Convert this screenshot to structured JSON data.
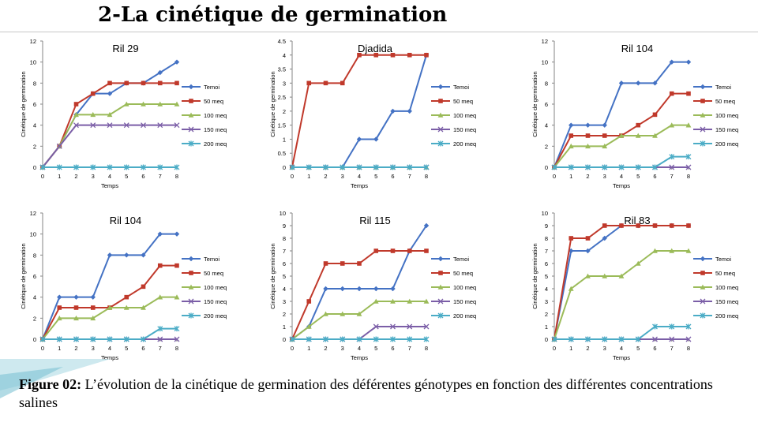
{
  "slide": {
    "title": "2-La cinétique de germination",
    "caption_label": "Figure 02:",
    "caption_text": " L’évolution de la cinétique de germination des déférentes génotypes en fonction des différentes concentrations salines"
  },
  "colors": {
    "Temoi": "#4472C4",
    "50 meq": "#C0392B",
    "100 meq": "#9BBB59",
    "150 meq": "#7B5EA7",
    "200 meq": "#4BACC6"
  },
  "chart_data": [
    {
      "type": "line",
      "title": "Ril 29",
      "xlabel": "Temps",
      "ylabel": "Cinétique de germination",
      "ylim": [
        0,
        12
      ],
      "yticks": [
        "0",
        "2",
        "4",
        "6",
        "8",
        "10",
        "12"
      ],
      "x": [
        0,
        1,
        2,
        3,
        4,
        5,
        6,
        7,
        8
      ],
      "xticks": [
        "0",
        "1",
        "2",
        "3",
        "4",
        "5",
        "6",
        "7",
        "8"
      ],
      "series": [
        {
          "name": "Temoi",
          "values": [
            0,
            2,
            5,
            7,
            7,
            8,
            8,
            9,
            10
          ]
        },
        {
          "name": "50 meq",
          "values": [
            0,
            2,
            6,
            7,
            8,
            8,
            8,
            8,
            8
          ]
        },
        {
          "name": "100 meq",
          "values": [
            0,
            2,
            5,
            5,
            5,
            6,
            6,
            6,
            6
          ]
        },
        {
          "name": "150 meq",
          "values": [
            0,
            2,
            4,
            4,
            4,
            4,
            4,
            4,
            4
          ]
        },
        {
          "name": "200 meq",
          "values": [
            0,
            0,
            0,
            0,
            0,
            0,
            0,
            0,
            0
          ]
        }
      ]
    },
    {
      "type": "line",
      "title": "Djadida",
      "xlabel": "Temps",
      "ylabel": "Cinétique de germination",
      "ylim": [
        0,
        4.5
      ],
      "yticks": [
        "0",
        "0.5",
        "1",
        "1.5",
        "2",
        "2.5",
        "3",
        "3.5",
        "4",
        "4.5"
      ],
      "x": [
        0,
        1,
        2,
        3,
        4,
        5,
        6,
        7,
        8
      ],
      "xticks": [
        "0",
        "1",
        "2",
        "3",
        "4",
        "5",
        "6",
        "7",
        "8"
      ],
      "series": [
        {
          "name": "Temoi",
          "values": [
            0,
            0,
            0,
            0,
            1,
            1,
            2,
            2,
            4
          ]
        },
        {
          "name": "50 meq",
          "values": [
            0,
            3,
            3,
            3,
            4,
            4,
            4,
            4,
            4
          ]
        },
        {
          "name": "100 meq",
          "values": [
            0,
            0,
            0,
            0,
            0,
            0,
            0,
            0,
            0
          ]
        },
        {
          "name": "150 meq",
          "values": [
            0,
            0,
            0,
            0,
            0,
            0,
            0,
            0,
            0
          ]
        },
        {
          "name": "200 meq",
          "values": [
            0,
            0,
            0,
            0,
            0,
            0,
            0,
            0,
            0
          ]
        }
      ]
    },
    {
      "type": "line",
      "title": "Ril 104",
      "xlabel": "Temps",
      "ylabel": "Cinétique de germination",
      "ylim": [
        0,
        12
      ],
      "yticks": [
        "0",
        "2",
        "4",
        "6",
        "8",
        "10",
        "12"
      ],
      "x": [
        0,
        1,
        2,
        3,
        4,
        5,
        6,
        7,
        8
      ],
      "xticks": [
        "0",
        "1",
        "2",
        "3",
        "4",
        "5",
        "6",
        "7",
        "8"
      ],
      "series": [
        {
          "name": "Temoi",
          "values": [
            0,
            4,
            4,
            4,
            8,
            8,
            8,
            10,
            10
          ]
        },
        {
          "name": "50 meq",
          "values": [
            0,
            3,
            3,
            3,
            3,
            4,
            5,
            7,
            7
          ]
        },
        {
          "name": "100 meq",
          "values": [
            0,
            2,
            2,
            2,
            3,
            3,
            3,
            4,
            4
          ]
        },
        {
          "name": "150 meq",
          "values": [
            0,
            0,
            0,
            0,
            0,
            0,
            0,
            0,
            0
          ]
        },
        {
          "name": "200 meq",
          "values": [
            0,
            0,
            0,
            0,
            0,
            0,
            0,
            1,
            1
          ]
        }
      ]
    },
    {
      "type": "line",
      "title": "Ril 104",
      "xlabel": "Temps",
      "ylabel": "Cinétique de germination",
      "ylim": [
        0,
        12
      ],
      "yticks": [
        "0",
        "2",
        "4",
        "6",
        "8",
        "10",
        "12"
      ],
      "x": [
        0,
        1,
        2,
        3,
        4,
        5,
        6,
        7,
        8
      ],
      "xticks": [
        "0",
        "1",
        "2",
        "3",
        "4",
        "5",
        "6",
        "7",
        "8"
      ],
      "series": [
        {
          "name": "Temoi",
          "values": [
            0,
            4,
            4,
            4,
            8,
            8,
            8,
            10,
            10
          ]
        },
        {
          "name": "50 meq",
          "values": [
            0,
            3,
            3,
            3,
            3,
            4,
            5,
            7,
            7
          ]
        },
        {
          "name": "100 meq",
          "values": [
            0,
            2,
            2,
            2,
            3,
            3,
            3,
            4,
            4
          ]
        },
        {
          "name": "150 meq",
          "values": [
            0,
            0,
            0,
            0,
            0,
            0,
            0,
            0,
            0
          ]
        },
        {
          "name": "200 meq",
          "values": [
            0,
            0,
            0,
            0,
            0,
            0,
            0,
            1,
            1
          ]
        }
      ]
    },
    {
      "type": "line",
      "title": "Ril 115",
      "xlabel": "Temps",
      "ylabel": "Cinétique de germination",
      "ylim": [
        0,
        10
      ],
      "yticks": [
        "0",
        "1",
        "2",
        "3",
        "4",
        "5",
        "6",
        "7",
        "8",
        "9",
        "10"
      ],
      "x": [
        0,
        1,
        2,
        3,
        4,
        5,
        6,
        7,
        8
      ],
      "xticks": [
        "0",
        "1",
        "2",
        "3",
        "4",
        "5",
        "6",
        "7",
        "8"
      ],
      "series": [
        {
          "name": "Temoi",
          "values": [
            0,
            1,
            4,
            4,
            4,
            4,
            4,
            7,
            9
          ]
        },
        {
          "name": "50 meq",
          "values": [
            0,
            3,
            6,
            6,
            6,
            7,
            7,
            7,
            7
          ]
        },
        {
          "name": "100 meq",
          "values": [
            0,
            1,
            2,
            2,
            2,
            3,
            3,
            3,
            3
          ]
        },
        {
          "name": "150 meq",
          "values": [
            0,
            0,
            0,
            0,
            0,
            1,
            1,
            1,
            1
          ]
        },
        {
          "name": "200 meq",
          "values": [
            0,
            0,
            0,
            0,
            0,
            0,
            0,
            0,
            0
          ]
        }
      ]
    },
    {
      "type": "line",
      "title": "Ril 83",
      "xlabel": "Temps",
      "ylabel": "Cinétique de germination",
      "ylim": [
        0,
        10
      ],
      "yticks": [
        "0",
        "1",
        "2",
        "3",
        "4",
        "5",
        "6",
        "7",
        "8",
        "9",
        "10"
      ],
      "x": [
        0,
        1,
        2,
        3,
        4,
        5,
        6,
        7,
        8
      ],
      "xticks": [
        "0",
        "1",
        "2",
        "3",
        "4",
        "5",
        "6",
        "7",
        "8"
      ],
      "series": [
        {
          "name": "Temoi",
          "values": [
            0,
            7,
            7,
            8,
            9,
            9,
            9,
            9,
            9
          ]
        },
        {
          "name": "50 meq",
          "values": [
            0,
            8,
            8,
            9,
            9,
            9,
            9,
            9,
            9
          ]
        },
        {
          "name": "100 meq",
          "values": [
            0,
            4,
            5,
            5,
            5,
            6,
            7,
            7,
            7
          ]
        },
        {
          "name": "150 meq",
          "values": [
            0,
            0,
            0,
            0,
            0,
            0,
            0,
            0,
            0
          ]
        },
        {
          "name": "200 meq",
          "values": [
            0,
            0,
            0,
            0,
            0,
            0,
            1,
            1,
            1
          ]
        }
      ]
    }
  ]
}
